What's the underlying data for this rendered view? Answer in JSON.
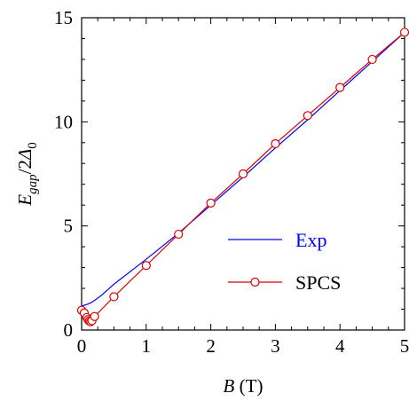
{
  "chart_data": {
    "type": "line",
    "title": "",
    "xlabel": {
      "italic": "B",
      "rest": " (T)"
    },
    "ylabel": {
      "main": "E",
      "sub1": "gap",
      "mid": "/2",
      "delta": "Δ",
      "sub2": "0"
    },
    "xlim": [
      0,
      5
    ],
    "ylim": [
      0,
      15
    ],
    "xticks": [
      "0",
      "1",
      "2",
      "3",
      "4",
      "5"
    ],
    "yticks": [
      "0",
      "5",
      "10",
      "15"
    ],
    "grid": false,
    "legend_position": "bottom-right",
    "series": [
      {
        "name": "Exp",
        "color": "#0000ff",
        "marker": "none",
        "x": [
          0.0,
          0.05,
          0.1,
          0.15,
          0.2,
          0.3,
          0.5,
          1.0,
          1.5,
          2.0,
          2.5,
          3.0,
          3.5,
          4.0,
          4.5,
          5.0
        ],
        "y": [
          1.15,
          1.2,
          1.25,
          1.32,
          1.42,
          1.65,
          2.2,
          3.4,
          4.65,
          6.0,
          7.35,
          8.75,
          10.1,
          11.5,
          12.9,
          14.3
        ]
      },
      {
        "name": "SPCS",
        "color": "#dd0000",
        "marker": "circle",
        "x": [
          0.0,
          0.04,
          0.08,
          0.1,
          0.12,
          0.14,
          0.16,
          0.2,
          0.5,
          1.0,
          1.5,
          2.0,
          2.5,
          3.0,
          3.5,
          4.0,
          4.5,
          5.0
        ],
        "y": [
          0.95,
          0.82,
          0.6,
          0.5,
          0.43,
          0.4,
          0.45,
          0.65,
          1.6,
          3.1,
          4.6,
          6.1,
          7.5,
          8.95,
          10.3,
          11.65,
          13.0,
          14.3
        ]
      }
    ]
  }
}
